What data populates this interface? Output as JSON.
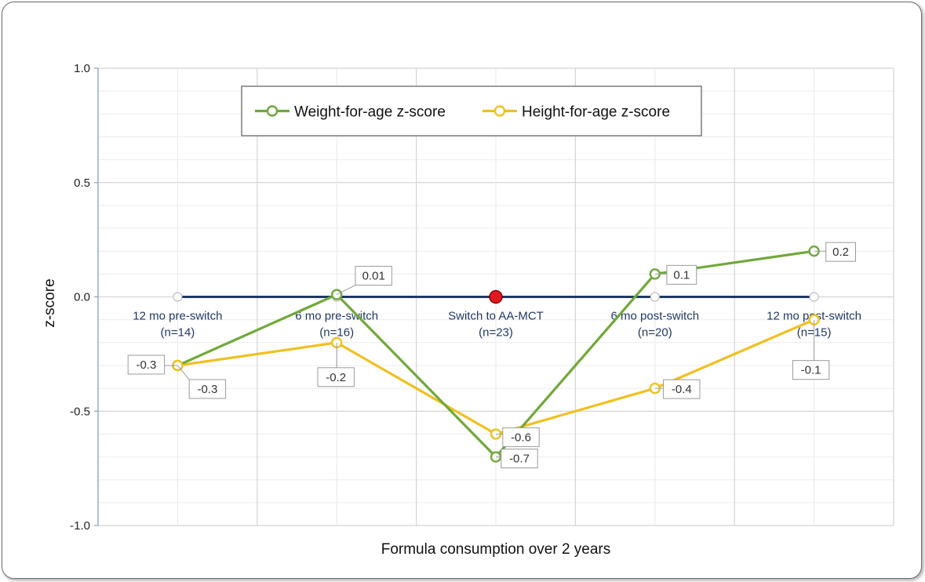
{
  "chart_data": {
    "type": "line",
    "title": "",
    "xlabel": "Formula consumption over 2 years",
    "ylabel": "z-score",
    "ylim": [
      -1.0,
      1.0
    ],
    "yticks": [
      "1.0",
      "0.5",
      "0.0",
      "-0.5",
      "-1.0"
    ],
    "ytick_values": [
      1.0,
      0.5,
      0.0,
      -0.5,
      -1.0
    ],
    "grid": true,
    "legend_position": "top",
    "categories": [
      [
        "12 mo pre-switch",
        "(n=14)"
      ],
      [
        "6 mo pre-switch",
        "(n=16)"
      ],
      [
        "Switch to AA-MCT",
        "(n=23)"
      ],
      [
        "6 mo post-switch",
        "(n=20)"
      ],
      [
        "12 mo post-switch",
        "(n=15)"
      ]
    ],
    "series": [
      {
        "name": "Weight-for-age z-score",
        "color": "#70a83b",
        "values": [
          -0.3,
          0.01,
          -0.7,
          0.1,
          0.2
        ],
        "labels": [
          "-0.3",
          "0.01",
          "-0.7",
          "0.1",
          "0.2"
        ]
      },
      {
        "name": "Height-for-age z-score",
        "color": "#f0c020",
        "values": [
          -0.3,
          -0.2,
          -0.6,
          -0.4,
          -0.1
        ],
        "labels": [
          "-0.3",
          "-0.2",
          "-0.6",
          "-0.4",
          "-0.1"
        ]
      }
    ],
    "baseline": {
      "value": 0.0,
      "color": "#1f3864",
      "highlight_index": 2,
      "highlight_color": "#e0191f"
    }
  }
}
